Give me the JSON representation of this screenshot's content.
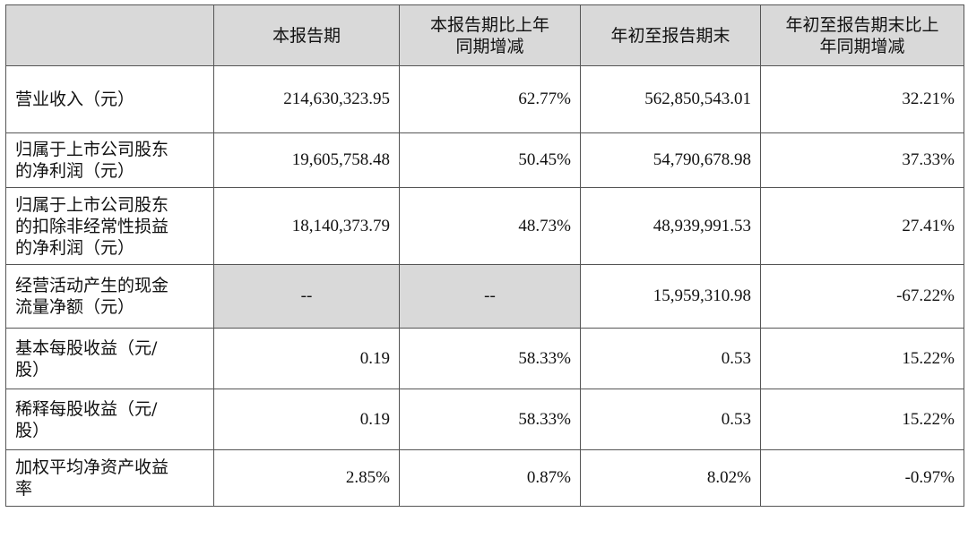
{
  "header": {
    "corner": "",
    "col1": "本报告期",
    "col2_line1": "本报告期比上年",
    "col2_line2": "同期增减",
    "col3": "年初至报告期末",
    "col4_line1": "年初至报告期末比上",
    "col4_line2": "年同期增减"
  },
  "rows": [
    {
      "label_lines": [
        "营业收入（元）"
      ],
      "current": "214,630,323.95",
      "current_change": "62.77%",
      "ytd": "562,850,543.01",
      "ytd_change": "32.21%"
    },
    {
      "label_lines": [
        "归属于上市公司股东",
        "的净利润（元）"
      ],
      "current": "19,605,758.48",
      "current_change": "50.45%",
      "ytd": "54,790,678.98",
      "ytd_change": "37.33%"
    },
    {
      "label_lines": [
        "归属于上市公司股东",
        "的扣除非经常性损益",
        "的净利润（元）"
      ],
      "current": "18,140,373.79",
      "current_change": "48.73%",
      "ytd": "48,939,991.53",
      "ytd_change": "27.41%"
    },
    {
      "label_lines": [
        "经营活动产生的现金",
        "流量净额（元）"
      ],
      "current": "--",
      "current_change": "--",
      "ytd": "15,959,310.98",
      "ytd_change": "-67.22%"
    },
    {
      "label_lines": [
        "基本每股收益（元/",
        "股）"
      ],
      "current": "0.19",
      "current_change": "58.33%",
      "ytd": "0.53",
      "ytd_change": "15.22%"
    },
    {
      "label_lines": [
        "稀释每股收益（元/",
        "股）"
      ],
      "current": "0.19",
      "current_change": "58.33%",
      "ytd": "0.53",
      "ytd_change": "15.22%"
    },
    {
      "label_lines": [
        "加权平均净资产收益",
        "率"
      ],
      "current": "2.85%",
      "current_change": "0.87%",
      "ytd": "8.02%",
      "ytd_change": "-0.97%"
    }
  ],
  "colors": {
    "header_bg": "#d9d9d9",
    "border": "#555555",
    "text": "#111111"
  }
}
